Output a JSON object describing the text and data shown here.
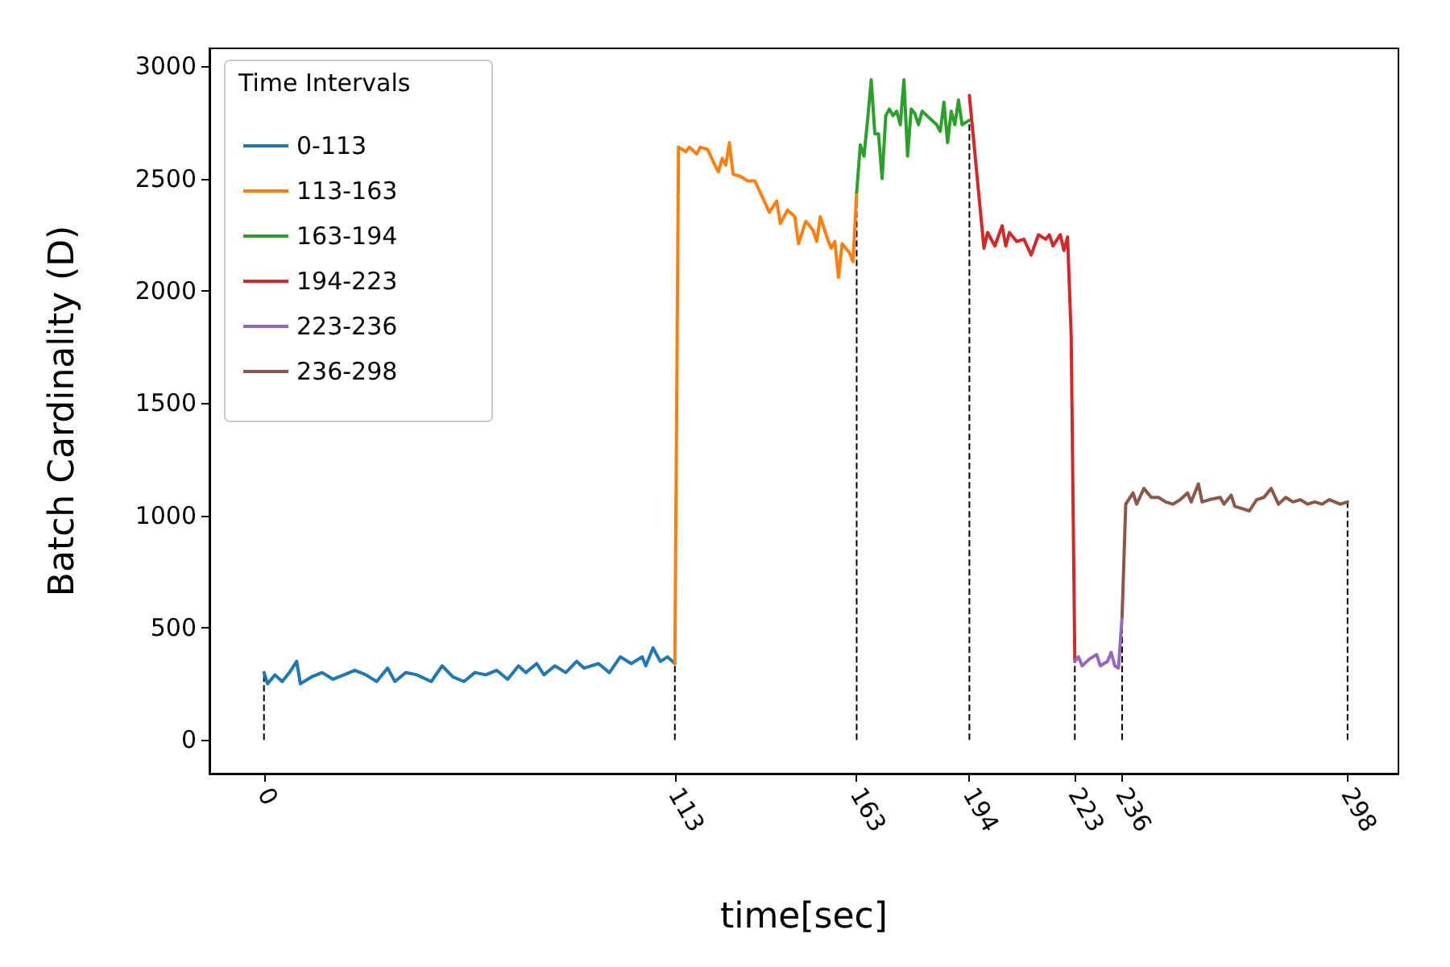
{
  "chart_data": {
    "type": "line",
    "xlabel": "time[sec]",
    "ylabel": "Batch Cardinality (D)",
    "legend_title": "Time Intervals",
    "legend": "top left",
    "grid": false,
    "marker": "none",
    "line_style": "solid",
    "xlim": [
      -15,
      312
    ],
    "ylim": [
      -150,
      3080
    ],
    "xticks": [
      0,
      113,
      163,
      194,
      223,
      236,
      298
    ],
    "yticks": [
      0,
      500,
      1000,
      1500,
      2000,
      2500,
      3000
    ],
    "ref_lines": [
      {
        "axis": "x",
        "value": 0,
        "color": "#000000",
        "line_style": "dashed"
      },
      {
        "axis": "x",
        "value": 113,
        "color": "#000000",
        "line_style": "dashed"
      },
      {
        "axis": "x",
        "value": 163,
        "color": "#000000",
        "line_style": "dashed"
      },
      {
        "axis": "x",
        "value": 194,
        "color": "#000000",
        "line_style": "dashed"
      },
      {
        "axis": "x",
        "value": 223,
        "color": "#000000",
        "line_style": "dashed"
      },
      {
        "axis": "x",
        "value": 236,
        "color": "#000000",
        "line_style": "dashed"
      },
      {
        "axis": "x",
        "value": 298,
        "color": "#000000",
        "line_style": "dashed"
      }
    ],
    "series": [
      {
        "name": "0-113",
        "color": "#1f77b4",
        "x": [
          0,
          1,
          3,
          5,
          7,
          9,
          10,
          13,
          16,
          19,
          22,
          25,
          28,
          31,
          34,
          36,
          39,
          42,
          46,
          49,
          52,
          55,
          58,
          61,
          64,
          67,
          70,
          72,
          75,
          77,
          80,
          83,
          86,
          88,
          92,
          95,
          98,
          101,
          104,
          105,
          107,
          109,
          111,
          113
        ],
        "values": [
          300,
          250,
          290,
          260,
          300,
          350,
          250,
          280,
          300,
          270,
          290,
          310,
          290,
          260,
          320,
          260,
          300,
          290,
          260,
          330,
          280,
          260,
          300,
          290,
          310,
          270,
          330,
          300,
          340,
          290,
          330,
          300,
          350,
          320,
          340,
          300,
          370,
          340,
          370,
          330,
          410,
          350,
          370,
          340
        ]
      },
      {
        "name": "113-163",
        "color": "#ff7f0e",
        "x": [
          113,
          114,
          116,
          117,
          119,
          120,
          122,
          124,
          125,
          126,
          127,
          128,
          129,
          131,
          133,
          135,
          137,
          139,
          141,
          142,
          144,
          146,
          147,
          149,
          151,
          152,
          153,
          155,
          156,
          157,
          158,
          159,
          161,
          162,
          163
        ],
        "values": [
          340,
          2640,
          2620,
          2640,
          2610,
          2640,
          2630,
          2560,
          2530,
          2590,
          2560,
          2660,
          2520,
          2510,
          2490,
          2490,
          2420,
          2350,
          2400,
          2300,
          2360,
          2330,
          2210,
          2310,
          2270,
          2220,
          2330,
          2230,
          2190,
          2220,
          2060,
          2210,
          2170,
          2130,
          2440
        ]
      },
      {
        "name": "163-194",
        "color": "#2ca02c",
        "x": [
          163,
          164,
          165,
          166,
          167,
          168,
          169,
          170,
          171,
          172,
          173,
          174,
          175,
          176,
          177,
          178,
          179,
          180,
          181,
          183,
          185,
          186,
          187,
          188,
          189,
          190,
          191,
          192,
          194
        ],
        "values": [
          2440,
          2650,
          2600,
          2760,
          2940,
          2700,
          2700,
          2500,
          2780,
          2810,
          2780,
          2800,
          2740,
          2940,
          2600,
          2810,
          2790,
          2740,
          2800,
          2770,
          2740,
          2710,
          2840,
          2660,
          2800,
          2740,
          2850,
          2740,
          2760
        ]
      },
      {
        "name": "194-223",
        "color": "#d62728",
        "x": [
          194,
          197,
          198,
          199,
          201,
          203,
          204,
          205,
          207,
          209,
          211,
          213,
          215,
          216,
          217,
          219,
          220,
          221,
          222,
          223
        ],
        "values": [
          2870,
          2360,
          2190,
          2260,
          2200,
          2290,
          2200,
          2260,
          2220,
          2230,
          2160,
          2250,
          2230,
          2250,
          2200,
          2250,
          2180,
          2240,
          1800,
          350
        ]
      },
      {
        "name": "223-236",
        "color": "#9467bd",
        "x": [
          223,
          224,
          225,
          227,
          229,
          230,
          232,
          233,
          234,
          235,
          236
        ],
        "values": [
          350,
          370,
          330,
          360,
          380,
          330,
          350,
          390,
          330,
          320,
          550
        ]
      },
      {
        "name": "236-298",
        "color": "#8c564b",
        "x": [
          236,
          237,
          239,
          240,
          242,
          244,
          246,
          248,
          250,
          252,
          254,
          255,
          257,
          258,
          260,
          263,
          264,
          266,
          267,
          269,
          271,
          273,
          275,
          277,
          279,
          281,
          283,
          285,
          287,
          289,
          291,
          293,
          296,
          298
        ],
        "values": [
          550,
          1050,
          1100,
          1050,
          1120,
          1080,
          1080,
          1060,
          1050,
          1070,
          1100,
          1060,
          1140,
          1060,
          1070,
          1080,
          1050,
          1090,
          1040,
          1030,
          1020,
          1070,
          1080,
          1120,
          1050,
          1080,
          1060,
          1070,
          1050,
          1060,
          1050,
          1070,
          1050,
          1060
        ]
      }
    ]
  }
}
